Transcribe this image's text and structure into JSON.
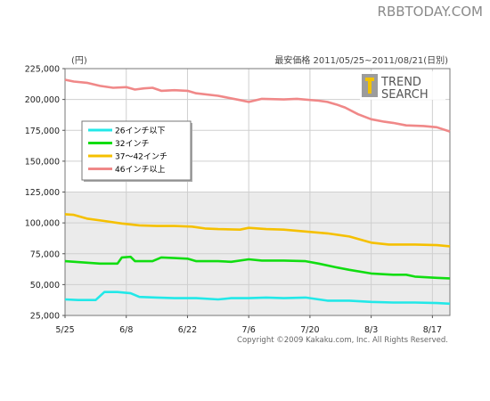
{
  "watermark": "RBBTODAY.COM",
  "header": {
    "unit": "(円)",
    "title": "最安価格  2011/05/25~2011/08/21(日別)"
  },
  "logo": {
    "line1": "TREND",
    "line2": "SEARCH"
  },
  "copyright": "Copyright ©2009 Kakaku.com, Inc. All Rights Reserved.",
  "chart_data": {
    "type": "line",
    "x_tick_labels": [
      "5/25",
      "6/8",
      "6/22",
      "7/6",
      "7/20",
      "8/3",
      "8/17"
    ],
    "x_tick_days": [
      0,
      14,
      28,
      42,
      56,
      70,
      84
    ],
    "x_range_days": [
      0,
      88
    ],
    "ylim": [
      25000,
      225000
    ],
    "y_ticks": [
      25000,
      50000,
      75000,
      100000,
      125000,
      150000,
      175000,
      200000,
      225000
    ],
    "y_tick_labels": [
      "25,000",
      "50,000",
      "75,000",
      "100,000",
      "125,000",
      "150,000",
      "175,000",
      "200,000",
      "225,000"
    ],
    "grid": true,
    "legend_position": "upper-left",
    "series": [
      {
        "name": "26インチ以下",
        "color": "#22e8e8",
        "points": [
          [
            0,
            38000
          ],
          [
            3,
            37500
          ],
          [
            7,
            37500
          ],
          [
            9,
            44000
          ],
          [
            12,
            44000
          ],
          [
            15,
            43000
          ],
          [
            17,
            40000
          ],
          [
            21,
            39500
          ],
          [
            25,
            39000
          ],
          [
            30,
            39000
          ],
          [
            35,
            38000
          ],
          [
            38,
            39000
          ],
          [
            42,
            39000
          ],
          [
            46,
            39500
          ],
          [
            50,
            39000
          ],
          [
            55,
            39500
          ],
          [
            60,
            37000
          ],
          [
            65,
            37000
          ],
          [
            70,
            36000
          ],
          [
            75,
            35500
          ],
          [
            80,
            35500
          ],
          [
            85,
            35000
          ],
          [
            88,
            34500
          ]
        ]
      },
      {
        "name": "32インチ",
        "color": "#11dd11",
        "points": [
          [
            0,
            69000
          ],
          [
            4,
            68000
          ],
          [
            8,
            67000
          ],
          [
            12,
            67000
          ],
          [
            13,
            72000
          ],
          [
            15,
            72500
          ],
          [
            16,
            69000
          ],
          [
            20,
            69000
          ],
          [
            22,
            72000
          ],
          [
            25,
            71500
          ],
          [
            28,
            71000
          ],
          [
            30,
            69000
          ],
          [
            35,
            69000
          ],
          [
            38,
            68500
          ],
          [
            42,
            70500
          ],
          [
            45,
            69500
          ],
          [
            50,
            69500
          ],
          [
            55,
            69000
          ],
          [
            58,
            67000
          ],
          [
            62,
            64000
          ],
          [
            65,
            62000
          ],
          [
            70,
            59000
          ],
          [
            75,
            58000
          ],
          [
            78,
            58000
          ],
          [
            80,
            56500
          ],
          [
            85,
            55500
          ],
          [
            88,
            55000
          ]
        ]
      },
      {
        "name": "37～42インチ",
        "color": "#f5c000",
        "points": [
          [
            0,
            107000
          ],
          [
            2,
            106500
          ],
          [
            5,
            103500
          ],
          [
            9,
            101500
          ],
          [
            13,
            99500
          ],
          [
            17,
            98000
          ],
          [
            21,
            97500
          ],
          [
            25,
            97500
          ],
          [
            29,
            97000
          ],
          [
            32,
            95500
          ],
          [
            35,
            95000
          ],
          [
            40,
            94500
          ],
          [
            42,
            96000
          ],
          [
            46,
            95000
          ],
          [
            50,
            94500
          ],
          [
            55,
            93000
          ],
          [
            60,
            91500
          ],
          [
            65,
            89000
          ],
          [
            70,
            84000
          ],
          [
            74,
            82500
          ],
          [
            80,
            82500
          ],
          [
            85,
            82000
          ],
          [
            88,
            81000
          ]
        ]
      },
      {
        "name": "46インチ以上",
        "color": "#f08888",
        "points": [
          [
            0,
            216000
          ],
          [
            2,
            214500
          ],
          [
            5,
            213500
          ],
          [
            8,
            211000
          ],
          [
            11,
            209500
          ],
          [
            14,
            210000
          ],
          [
            16,
            208000
          ],
          [
            18,
            209000
          ],
          [
            20,
            209500
          ],
          [
            22,
            207000
          ],
          [
            25,
            207500
          ],
          [
            28,
            207000
          ],
          [
            30,
            205000
          ],
          [
            35,
            203000
          ],
          [
            40,
            199500
          ],
          [
            42,
            198000
          ],
          [
            45,
            200500
          ],
          [
            50,
            200000
          ],
          [
            53,
            200500
          ],
          [
            58,
            199000
          ],
          [
            60,
            198000
          ],
          [
            62,
            196000
          ],
          [
            64,
            193500
          ],
          [
            67,
            188000
          ],
          [
            70,
            184000
          ],
          [
            73,
            182000
          ],
          [
            75,
            181000
          ],
          [
            78,
            179000
          ],
          [
            82,
            178500
          ],
          [
            85,
            177500
          ],
          [
            88,
            174000
          ]
        ]
      }
    ]
  }
}
